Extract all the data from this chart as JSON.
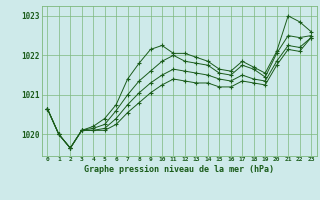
{
  "title": "Graphe pression niveau de la mer (hPa)",
  "bg_color": "#ceeaea",
  "grid_color": "#7db87d",
  "line_color": "#1a5c1a",
  "xlim": [
    -0.5,
    23.5
  ],
  "ylim": [
    1019.45,
    1023.25
  ],
  "yticks": [
    1020,
    1021,
    1022,
    1023
  ],
  "xticks": [
    0,
    1,
    2,
    3,
    4,
    5,
    6,
    7,
    8,
    9,
    10,
    11,
    12,
    13,
    14,
    15,
    16,
    17,
    18,
    19,
    20,
    21,
    22,
    23
  ],
  "series1": [
    1020.65,
    1020.0,
    1019.65,
    1020.1,
    1020.2,
    1020.4,
    1020.75,
    1021.4,
    1021.8,
    1022.15,
    1022.25,
    1022.05,
    1022.05,
    1021.95,
    1021.85,
    1021.65,
    1021.6,
    1021.85,
    1021.7,
    1021.55,
    1022.1,
    1023.0,
    1022.85,
    1022.6
  ],
  "series2": [
    1020.65,
    1020.0,
    1019.65,
    1020.1,
    1020.15,
    1020.25,
    1020.6,
    1021.0,
    1021.35,
    1021.6,
    1021.85,
    1022.0,
    1021.85,
    1021.8,
    1021.75,
    1021.55,
    1021.5,
    1021.75,
    1021.65,
    1021.45,
    1022.05,
    1022.5,
    1022.45,
    1022.5
  ],
  "series3": [
    1020.65,
    1020.0,
    1019.65,
    1020.1,
    1020.1,
    1020.15,
    1020.4,
    1020.75,
    1021.05,
    1021.3,
    1021.5,
    1021.65,
    1021.6,
    1021.55,
    1021.5,
    1021.4,
    1021.35,
    1021.5,
    1021.4,
    1021.35,
    1021.85,
    1022.25,
    1022.2,
    1022.45
  ],
  "series4": [
    1020.65,
    1020.0,
    1019.65,
    1020.1,
    1020.1,
    1020.1,
    1020.25,
    1020.55,
    1020.8,
    1021.05,
    1021.25,
    1021.4,
    1021.35,
    1021.3,
    1021.3,
    1021.2,
    1021.2,
    1021.35,
    1021.3,
    1021.25,
    1021.75,
    1022.15,
    1022.1,
    1022.45
  ]
}
